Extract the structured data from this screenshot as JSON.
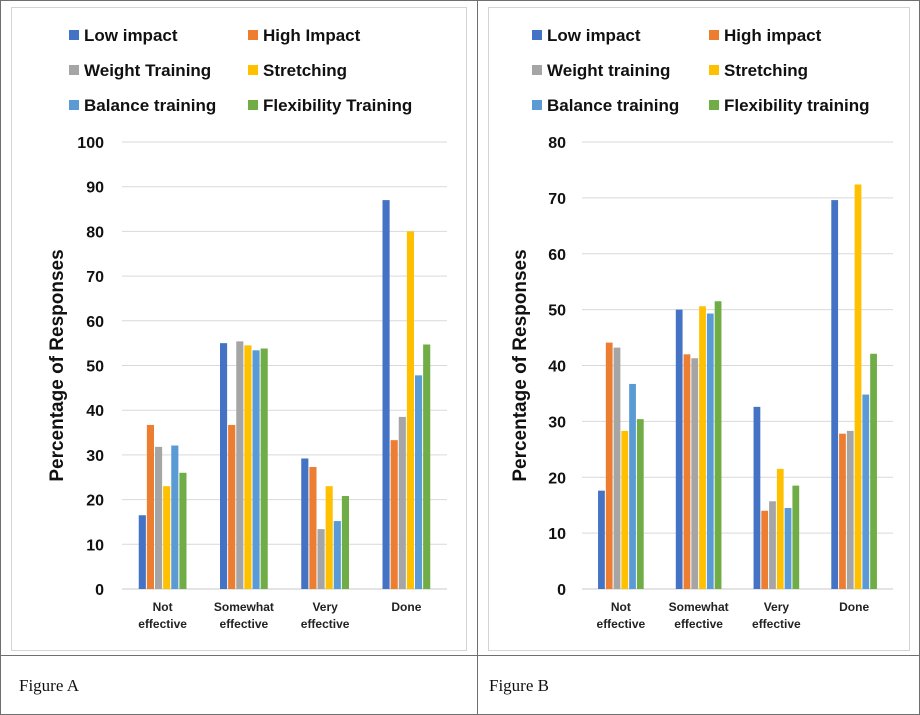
{
  "figures": [
    {
      "caption": "Figure A"
    },
    {
      "caption": "Figure B"
    }
  ],
  "chart_data": [
    {
      "type": "bar",
      "title": "",
      "xlabel": "",
      "ylabel": "Percentage of Responses",
      "ylim": [
        0,
        100
      ],
      "yticks": [
        0,
        10,
        20,
        30,
        40,
        50,
        60,
        70,
        80,
        90,
        100
      ],
      "grid": true,
      "legend_position": "top",
      "categories": [
        [
          "Not",
          "effective"
        ],
        [
          "Somewhat",
          "effective"
        ],
        [
          "Very",
          "effective"
        ],
        [
          "Done"
        ]
      ],
      "series": [
        {
          "name": "Low impact",
          "color": "#4472c4",
          "values": [
            16.5,
            55,
            29.2,
            87
          ]
        },
        {
          "name": "High Impact",
          "color": "#ed7d31",
          "values": [
            36.7,
            36.7,
            27.3,
            33.3
          ]
        },
        {
          "name": "Weight Training",
          "color": "#a5a5a5",
          "values": [
            31.8,
            55.4,
            13.4,
            38.5
          ]
        },
        {
          "name": "Stretching",
          "color": "#ffc000",
          "values": [
            23,
            54.5,
            23,
            80
          ]
        },
        {
          "name": "Balance training",
          "color": "#5b9bd5",
          "values": [
            32.1,
            53.4,
            15.2,
            47.8
          ]
        },
        {
          "name": "Flexibility Training",
          "color": "#70ad47",
          "values": [
            26,
            53.8,
            20.8,
            54.7
          ]
        }
      ]
    },
    {
      "type": "bar",
      "title": "",
      "xlabel": "",
      "ylabel": "Percentage of Responses",
      "ylim": [
        0,
        80
      ],
      "yticks": [
        0,
        10,
        20,
        30,
        40,
        50,
        60,
        70,
        80
      ],
      "grid": true,
      "legend_position": "top",
      "categories": [
        [
          "Not",
          "effective"
        ],
        [
          "Somewhat",
          "effective"
        ],
        [
          "Very",
          "effective"
        ],
        [
          "Done"
        ]
      ],
      "series": [
        {
          "name": "Low impact",
          "color": "#4472c4",
          "values": [
            17.6,
            50,
            32.6,
            69.6
          ]
        },
        {
          "name": "High impact",
          "color": "#ed7d31",
          "values": [
            44.1,
            42,
            14,
            27.8
          ]
        },
        {
          "name": "Weight training",
          "color": "#a5a5a5",
          "values": [
            43.2,
            41.3,
            15.7,
            28.3
          ]
        },
        {
          "name": "Stretching",
          "color": "#ffc000",
          "values": [
            28.3,
            50.6,
            21.5,
            72.4
          ]
        },
        {
          "name": "Balance training",
          "color": "#5b9bd5",
          "values": [
            36.7,
            49.3,
            14.5,
            34.8
          ]
        },
        {
          "name": "Flexibility training",
          "color": "#70ad47",
          "values": [
            30.4,
            51.5,
            18.5,
            42.1
          ]
        }
      ]
    }
  ]
}
